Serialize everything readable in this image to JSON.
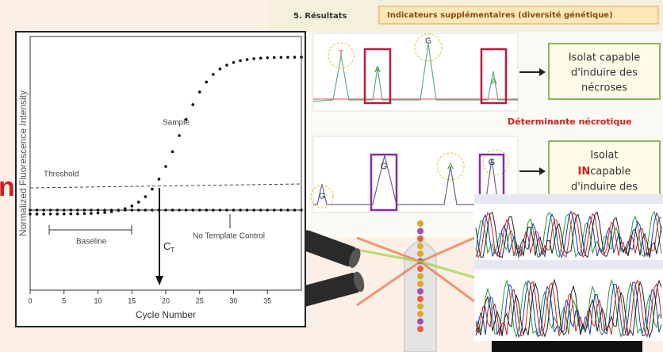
{
  "header": {
    "section": "5. Résultats",
    "banner": "Indicateurs supplémentaires (diversité génétique)"
  },
  "panel1": {
    "peaks": [
      "T",
      "A",
      "G",
      "A"
    ],
    "result": [
      "Isolat capable",
      "d'induire des",
      "nécroses"
    ],
    "marker": "Déterminante nécrotique"
  },
  "panel2": {
    "peaks": [
      "G",
      "A",
      "G",
      "G"
    ],
    "result_first": "Isolat",
    "result_emphasis": "IN",
    "result_rest": "capable",
    "result_last": "d'induire des"
  },
  "qpcr": {
    "y_label": "Normalized Fluorescence Intensity",
    "x_label": "Cycle Number",
    "x_ticks": [
      "0",
      "5",
      "10",
      "15",
      "20",
      "25",
      "30",
      "35"
    ],
    "sample": "Sample",
    "threshold": "Threshold",
    "baseline": "Baseline",
    "ntc": "No Template Control",
    "ct": "C",
    "ct_sub": "T"
  },
  "side_letter": "n"
}
